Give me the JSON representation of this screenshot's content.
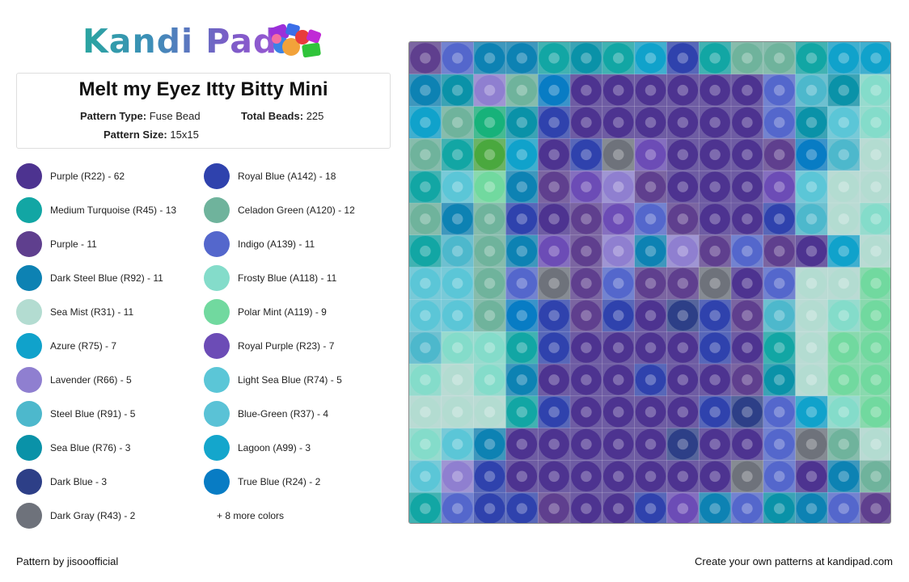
{
  "brand": {
    "name": "Kandi Pad"
  },
  "pattern": {
    "title": "Melt my Eyez Itty Bitty Mini",
    "type_label": "Pattern Type:",
    "type_value": "Fuse Bead",
    "beads_label": "Total Beads:",
    "beads_value": "225",
    "size_label": "Pattern Size:",
    "size_value": "15x15"
  },
  "legend": {
    "items": [
      {
        "label": "Purple (R22) - 62",
        "color": "#4d3390"
      },
      {
        "label": "Royal Blue (A142) - 18",
        "color": "#2f42ad"
      },
      {
        "label": "Medium Turquoise (R45) - 13",
        "color": "#12a6a4"
      },
      {
        "label": "Celadon Green (A120) - 12",
        "color": "#6fb39c"
      },
      {
        "label": "Purple - 11",
        "color": "#5f3f8e"
      },
      {
        "label": "Indigo (A139) - 11",
        "color": "#5467cc"
      },
      {
        "label": "Dark Steel Blue (R92) - 11",
        "color": "#0d82b3"
      },
      {
        "label": "Frosty Blue (A118) - 11",
        "color": "#84dcca"
      },
      {
        "label": "Sea Mist (R31) - 11",
        "color": "#b3dcd1"
      },
      {
        "label": "Polar Mint (A119) - 9",
        "color": "#71d99f"
      },
      {
        "label": "Azure (R75) - 7",
        "color": "#10a2cb"
      },
      {
        "label": "Royal Purple (R23) - 7",
        "color": "#6c4cb6"
      },
      {
        "label": "Lavender (R66) - 5",
        "color": "#8f7fd0"
      },
      {
        "label": "Light Sea Blue (R74) - 5",
        "color": "#5bc6d7"
      },
      {
        "label": "Steel Blue (R91) - 5",
        "color": "#4db8cc"
      },
      {
        "label": "Blue-Green (R37) - 4",
        "color": "#5ac2d6"
      },
      {
        "label": "Sea Blue (R76) - 3",
        "color": "#0a92a8"
      },
      {
        "label": "Lagoon (A99) - 3",
        "color": "#14a6cc"
      },
      {
        "label": "Dark Blue - 3",
        "color": "#2d3f87"
      },
      {
        "label": "True Blue (R24) - 2",
        "color": "#087cc4"
      },
      {
        "label": "Dark Gray (R43) - 2",
        "color": "#6e727b"
      }
    ],
    "more_label": "+ 8 more colors"
  },
  "palette": {
    "P": "#4d3390",
    "R": "#2f42ad",
    "T": "#12a6a4",
    "C": "#6fb39c",
    "U": "#5f3f8e",
    "I": "#5467cc",
    "D": "#0d82b3",
    "F": "#84dcca",
    "S": "#b3dcd1",
    "M": "#71d99f",
    "A": "#10a2cb",
    "Y": "#6c4cb6",
    "L": "#8f7fd0",
    "B": "#5bc6d7",
    "E": "#4db8cc",
    "G": "#17b27a",
    "V": "#0a92a8",
    "K": "#2d3f87",
    "W": "#087cc4",
    "X": "#6e727b",
    "H": "#4aa83e"
  },
  "grid": [
    "UIDDTVTARTCCTAA",
    "DVLCWPPPPPPIEVF",
    "ACGVRPPPPPPIVBF",
    "CTHAPRXYPPPUWE.",
    "TBMDUYLUPPPYBS.",
    "CDCRPUYIUPPRESF",
    "TECDYUL DLUIUPA.",
    "BBCIXUIUUXPIS.M",
    "BBCWRURPKRUESFM",
    "EFFTRPPPPRPTSMM",
    "FSFDPPPRPPUVSMM",
    "SSSTRPPPPRKIAFM",
    "FBDPPPPPKPPIXCS",
    "BLRPPPPPPPXIPDC",
    "TIRRUPPRYDIVDIU"
  ],
  "footer": {
    "credit": "Pattern by jisooofficial",
    "cta": "Create your own patterns at kandipad.com"
  }
}
